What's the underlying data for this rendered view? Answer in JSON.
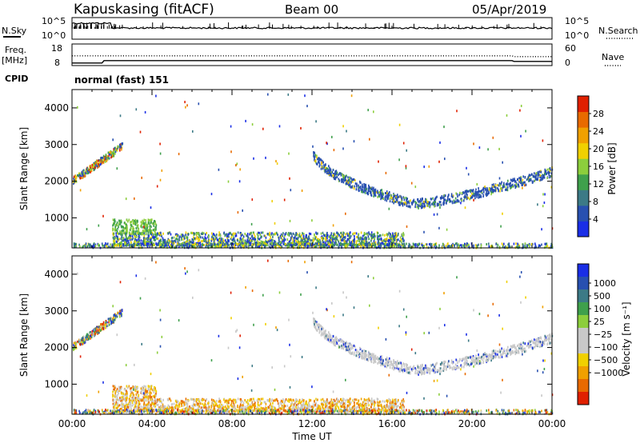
{
  "header": {
    "title": "Kapuskasing (fitACF)",
    "beam": "Beam 00",
    "date": "05/Apr/2019"
  },
  "chart_data": [
    {
      "type": "line",
      "name": "noise-panel",
      "left_label": "N.Sky",
      "right_label": "N.Search",
      "left_ticks": [
        "10^5",
        "10^0"
      ],
      "right_ticks": [
        "10^5",
        "10^0"
      ]
    },
    {
      "type": "line",
      "name": "frequency-panel",
      "left_label_line1": "Freq.",
      "left_label_line2": "[MHz]",
      "right_label": "Nave",
      "left_ticks": [
        18,
        8
      ],
      "right_ticks": [
        60,
        0
      ],
      "freq_level_mhz": 10.3,
      "nave_level": 27,
      "nave_level_late": 25
    },
    {
      "type": "table",
      "name": "cpid-panel",
      "label": "CPID",
      "value": "normal (fast) 151"
    },
    {
      "type": "heatmap",
      "name": "power-panel",
      "ylabel": "Slant Range [km]",
      "yticks": [
        1000,
        2000,
        3000,
        4000
      ],
      "ylim": [
        180,
        4500
      ],
      "xlim_hours": [
        0,
        24
      ],
      "colorbar_label": "Power [dB]",
      "colorbar_ticks": [
        4,
        8,
        12,
        16,
        20,
        24,
        28
      ],
      "colorbar_range": [
        0,
        32
      ],
      "colorbar_colors": [
        "#1a2ee6",
        "#2850b0",
        "#3c7a86",
        "#3fa04c",
        "#8cce3c",
        "#f0d000",
        "#f0a000",
        "#e86a00",
        "#e02000"
      ],
      "echo_bands": [
        {
          "x": [
            2.0,
            16.6
          ],
          "range_km": [
            250,
            600
          ],
          "desc": "near-range ground/ionospheric scatter"
        },
        {
          "x": [
            12.0,
            24.0
          ],
          "range_km_start": 2900,
          "range_km_min": 1380,
          "min_hour": 17.0,
          "range_km_end": 2250
        },
        {
          "x": [
            0.0,
            2.5
          ],
          "range_km_start": 2000,
          "range_km_end": 2950
        }
      ]
    },
    {
      "type": "heatmap",
      "name": "velocity-panel",
      "ylabel": "Slant Range [km]",
      "yticks": [
        1000,
        2000,
        3000,
        4000
      ],
      "ylim": [
        180,
        4500
      ],
      "xlim_hours": [
        0,
        24
      ],
      "xticks": [
        "00:00",
        "04:00",
        "08:00",
        "12:00",
        "16:00",
        "20:00",
        "00:00"
      ],
      "xlabel": "Time UT",
      "colorbar_label": "Velocity [m s⁻¹]",
      "colorbar_ticks": [
        "1000",
        "500",
        "100",
        "25",
        "−25",
        "−100",
        "−500",
        "−1000"
      ],
      "colorbar_colors": [
        "#1a2ee6",
        "#2850b0",
        "#3c7a86",
        "#3fa04c",
        "#8cce3c",
        "#c8c8c8",
        "#c8c8c8",
        "#f0d000",
        "#f0a000",
        "#e86a00",
        "#e02000"
      ]
    }
  ]
}
